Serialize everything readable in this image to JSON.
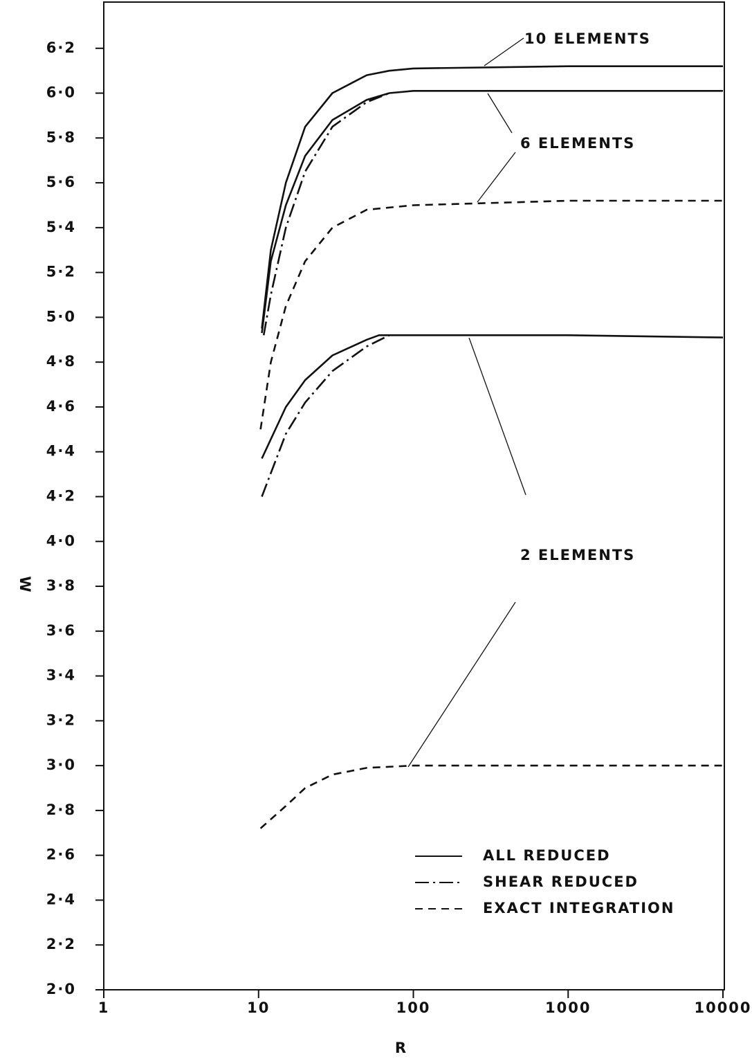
{
  "chart_data": {
    "type": "line",
    "xlabel": "R",
    "ylabel": "W",
    "xscale": "log",
    "xlim": [
      1,
      10000
    ],
    "xticks": [
      1,
      10,
      100,
      1000,
      10000
    ],
    "ylim": [
      2.0,
      6.4
    ],
    "yticks": [
      {
        "value": 2.0,
        "label": "2·0"
      },
      {
        "value": 2.2,
        "label": "2·2"
      },
      {
        "value": 2.4,
        "label": "2·4"
      },
      {
        "value": 2.6,
        "label": "2·6"
      },
      {
        "value": 2.8,
        "label": "2·8"
      },
      {
        "value": 3.0,
        "label": "3·0"
      },
      {
        "value": 3.2,
        "label": "3·2"
      },
      {
        "value": 3.4,
        "label": "3·4"
      },
      {
        "value": 3.6,
        "label": "3·6"
      },
      {
        "value": 3.8,
        "label": "3·8"
      },
      {
        "value": 4.0,
        "label": "4·0"
      },
      {
        "value": 4.2,
        "label": "4·2"
      },
      {
        "value": 4.4,
        "label": "4·4"
      },
      {
        "value": 4.6,
        "label": "4·6"
      },
      {
        "value": 4.8,
        "label": "4·8"
      },
      {
        "value": 5.0,
        "label": "5·0"
      },
      {
        "value": 5.2,
        "label": "5·2"
      },
      {
        "value": 5.4,
        "label": "5·4"
      },
      {
        "value": 5.6,
        "label": "5·6"
      },
      {
        "value": 5.8,
        "label": "5·8"
      },
      {
        "value": 6.0,
        "label": "6·0"
      },
      {
        "value": 6.2,
        "label": "6·2"
      }
    ],
    "color": "#111111",
    "legend": [
      {
        "label": "ALL REDUCED",
        "style": "solid"
      },
      {
        "label": "SHEAR REDUCED",
        "style": "dashdot"
      },
      {
        "label": "EXACT INTEGRATION",
        "style": "dashed"
      }
    ],
    "annotations": [
      "10 ELEMENTS",
      "6 ELEMENTS",
      "2 ELEMENTS"
    ],
    "series": [
      {
        "style": "solid",
        "x": [
          10.5,
          12,
          15,
          20,
          30,
          50,
          70,
          100,
          1000,
          10000
        ],
        "values": [
          4.95,
          5.3,
          5.6,
          5.85,
          6.0,
          6.08,
          6.1,
          6.11,
          6.12,
          6.12
        ]
      },
      {
        "style": "solid",
        "x": [
          10.5,
          12,
          15,
          20,
          30,
          50,
          70,
          100,
          1000,
          10000
        ],
        "values": [
          4.93,
          5.25,
          5.5,
          5.72,
          5.88,
          5.97,
          6.0,
          6.01,
          6.01,
          6.01
        ]
      },
      {
        "style": "dashdot",
        "x": [
          10.8,
          12,
          15,
          20,
          30,
          50,
          70
        ],
        "values": [
          4.92,
          5.1,
          5.4,
          5.65,
          5.85,
          5.96,
          6.0
        ]
      },
      {
        "style": "dashed",
        "x": [
          10.3,
          12,
          15,
          20,
          30,
          50,
          100,
          1000,
          10000
        ],
        "values": [
          4.5,
          4.8,
          5.05,
          5.25,
          5.4,
          5.48,
          5.5,
          5.52,
          5.52
        ]
      },
      {
        "style": "solid",
        "x": [
          10.5,
          15,
          20,
          30,
          50,
          60,
          100,
          1000,
          10000
        ],
        "values": [
          4.37,
          4.6,
          4.72,
          4.83,
          4.9,
          4.92,
          4.92,
          4.92,
          4.91
        ]
      },
      {
        "style": "dashdot",
        "x": [
          10.5,
          15,
          20,
          30,
          50,
          70
        ],
        "values": [
          4.2,
          4.48,
          4.62,
          4.76,
          4.87,
          4.92
        ]
      },
      {
        "style": "dashed",
        "x": [
          10.3,
          15,
          20,
          30,
          50,
          100,
          1000,
          10000
        ],
        "values": [
          2.72,
          2.82,
          2.9,
          2.96,
          2.99,
          3.0,
          3.0,
          3.0
        ]
      }
    ]
  }
}
